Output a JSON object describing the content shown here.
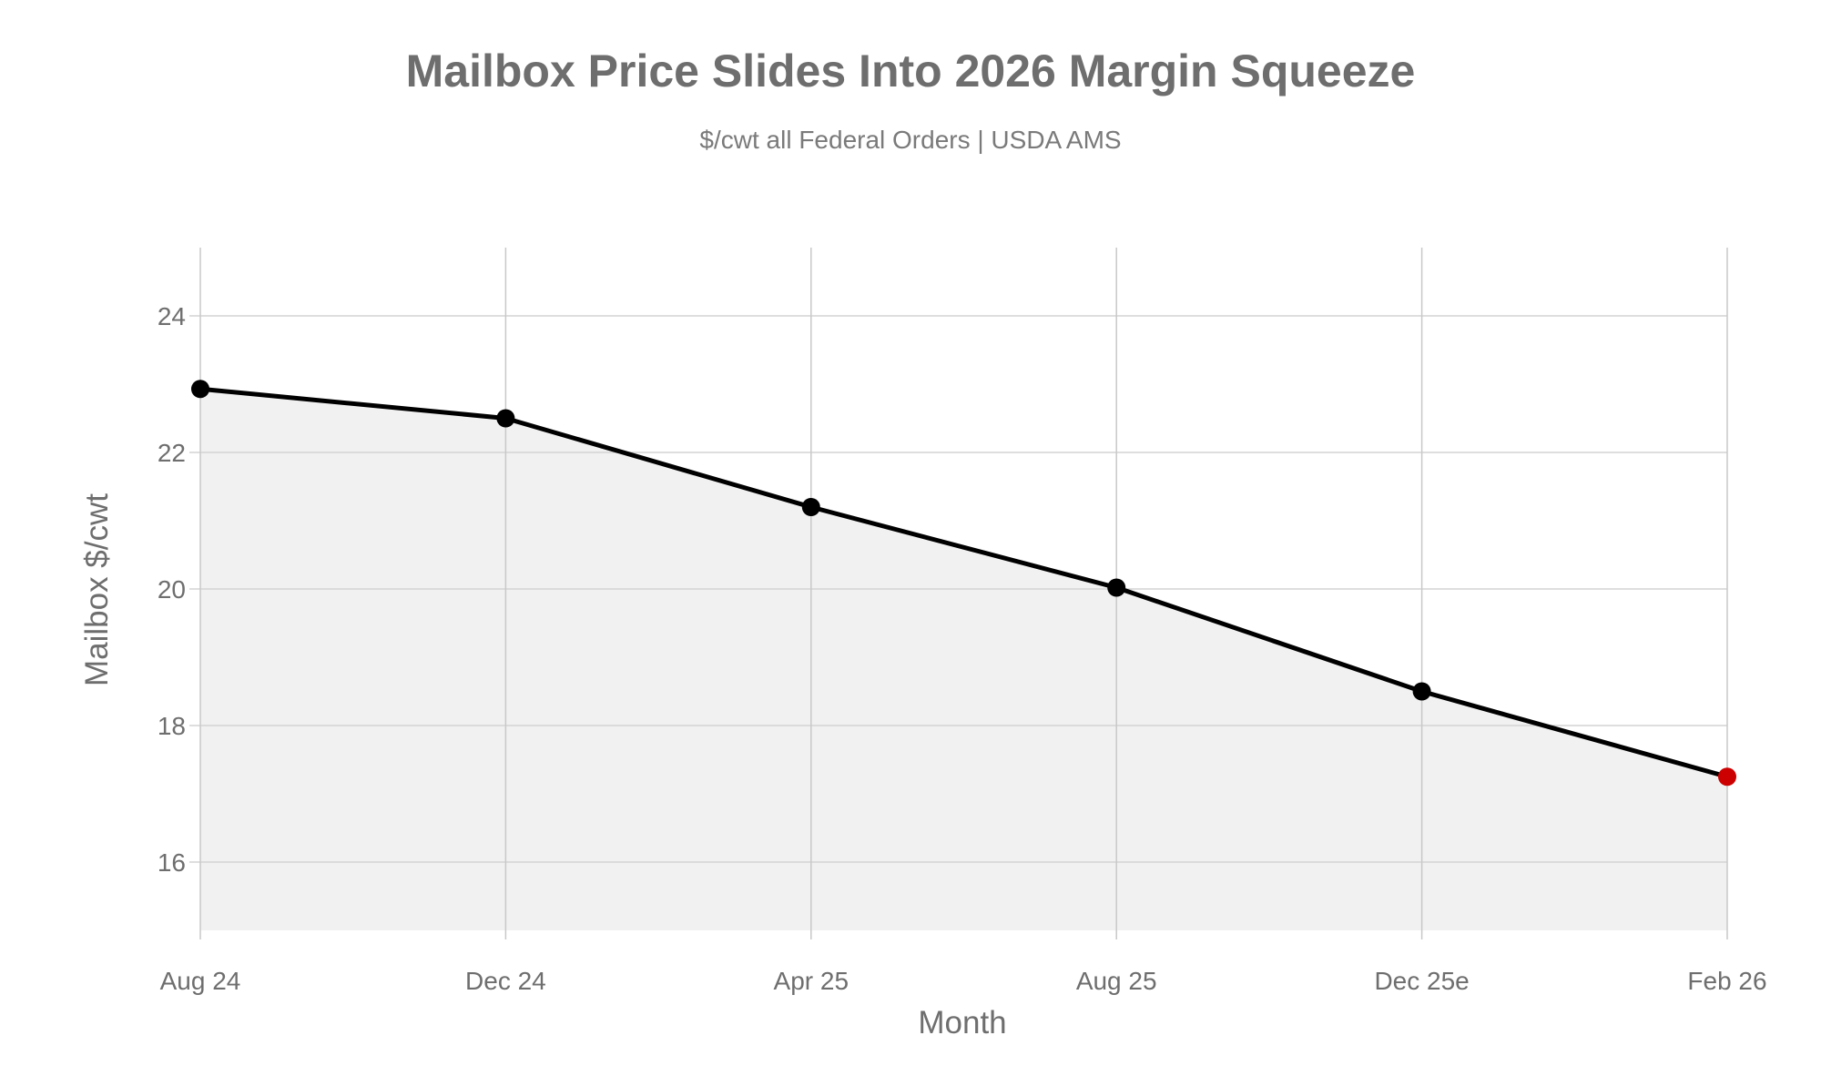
{
  "chart_data": {
    "type": "area",
    "title": "Mailbox Price Slides Into 2026 Margin Squeeze",
    "subtitle": "$/cwt all Federal Orders | USDA AMS",
    "xlabel": "Month",
    "ylabel": "Mailbox $/cwt",
    "categories": [
      "Aug 24",
      "Dec 24",
      "Apr 25",
      "Aug 25",
      "Dec 25e",
      "Feb 26"
    ],
    "values": [
      22.93,
      22.5,
      21.2,
      20.02,
      18.5,
      17.25
    ],
    "ylim": [
      15,
      25
    ],
    "yticks": [
      16,
      18,
      20,
      22,
      24
    ],
    "grid": true,
    "highlight_index": 5,
    "colors": {
      "line": "#000000",
      "marker": "#000000",
      "highlight": "#cc0000",
      "fill": "#f1f1f1"
    }
  }
}
